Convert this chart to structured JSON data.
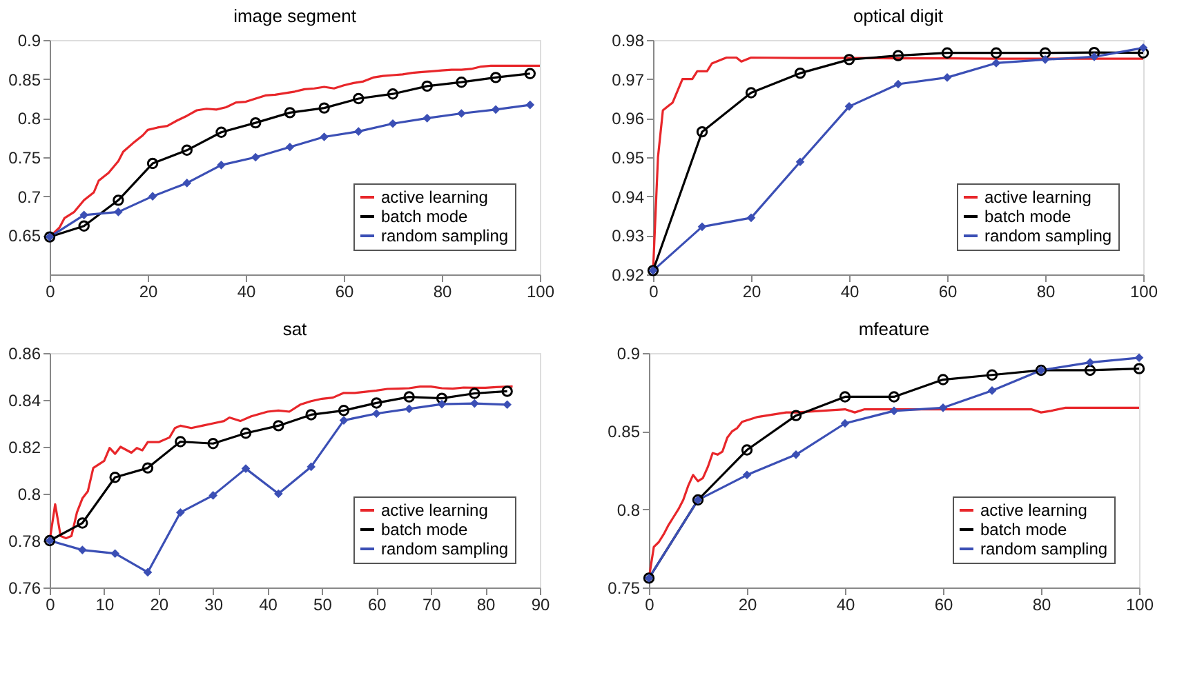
{
  "chart_data": [
    {
      "type": "line",
      "title": "image segment",
      "xlim": [
        0,
        100
      ],
      "xticks": [
        0,
        20,
        40,
        60,
        80,
        100
      ],
      "ylim": [
        0.6,
        0.9
      ],
      "yticks": [
        0.65,
        0.7,
        0.75,
        0.8,
        0.85,
        0.9
      ],
      "grid": false,
      "legend": "bottom right",
      "series": [
        {
          "name": "active learning",
          "color": "#e8262a",
          "marker": "none",
          "x": [
            0,
            2,
            3,
            5,
            7,
            9,
            10,
            12,
            14,
            15,
            17,
            19,
            20,
            22,
            24,
            26,
            28,
            30,
            32,
            34,
            36,
            38,
            40,
            42,
            44,
            46,
            48,
            50,
            52,
            54,
            56,
            58,
            60,
            62,
            64,
            66,
            68,
            70,
            72,
            74,
            76,
            78,
            80,
            82,
            84,
            86,
            88,
            90,
            95,
            100
          ],
          "values": [
            0.648,
            0.66,
            0.672,
            0.68,
            0.695,
            0.705,
            0.72,
            0.73,
            0.745,
            0.757,
            0.768,
            0.778,
            0.785,
            0.788,
            0.79,
            0.797,
            0.803,
            0.81,
            0.812,
            0.811,
            0.814,
            0.82,
            0.821,
            0.825,
            0.829,
            0.83,
            0.832,
            0.834,
            0.837,
            0.838,
            0.84,
            0.838,
            0.842,
            0.845,
            0.847,
            0.852,
            0.854,
            0.855,
            0.856,
            0.858,
            0.859,
            0.86,
            0.861,
            0.862,
            0.862,
            0.863,
            0.866,
            0.867,
            0.867,
            0.867
          ]
        },
        {
          "name": "batch mode",
          "color": "#000000",
          "marker": "circle",
          "x": [
            0,
            7,
            14,
            21,
            28,
            35,
            42,
            49,
            56,
            63,
            70,
            77,
            84,
            91,
            98
          ],
          "values": [
            0.648,
            0.662,
            0.695,
            0.742,
            0.759,
            0.782,
            0.794,
            0.807,
            0.813,
            0.825,
            0.831,
            0.841,
            0.846,
            0.852,
            0.857
          ]
        },
        {
          "name": "random sampling",
          "color": "#3b4fb5",
          "marker": "diamond",
          "x": [
            0,
            7,
            14,
            21,
            28,
            35,
            42,
            49,
            56,
            63,
            70,
            77,
            84,
            91,
            98
          ],
          "values": [
            0.648,
            0.676,
            0.68,
            0.7,
            0.717,
            0.74,
            0.75,
            0.763,
            0.776,
            0.783,
            0.793,
            0.8,
            0.806,
            0.811,
            0.817
          ]
        }
      ]
    },
    {
      "type": "line",
      "title": "optical digit",
      "xlim": [
        0,
        100
      ],
      "xticks": [
        0,
        20,
        40,
        60,
        80,
        100
      ],
      "ylim": [
        0.92,
        0.98
      ],
      "yticks": [
        0.92,
        0.93,
        0.94,
        0.95,
        0.96,
        0.97,
        0.98
      ],
      "grid": false,
      "legend": "bottom right",
      "series": [
        {
          "name": "active learning",
          "color": "#e8262a",
          "marker": "none",
          "x": [
            0,
            1,
            2,
            3,
            4,
            5,
            6,
            8,
            9,
            10,
            11,
            12,
            14,
            15,
            17,
            18,
            20,
            30,
            40,
            50,
            60,
            70,
            80,
            90,
            100
          ],
          "values": [
            0.921,
            0.95,
            0.962,
            0.963,
            0.964,
            0.967,
            0.97,
            0.97,
            0.972,
            0.972,
            0.972,
            0.974,
            0.975,
            0.9755,
            0.9755,
            0.9745,
            0.9755,
            0.9754,
            0.9754,
            0.9753,
            0.9753,
            0.9752,
            0.9752,
            0.9752,
            0.9752
          ]
        },
        {
          "name": "batch mode",
          "color": "#000000",
          "marker": "circle",
          "x": [
            0,
            10,
            20,
            30,
            40,
            50,
            60,
            70,
            80,
            90,
            100
          ],
          "values": [
            0.921,
            0.9565,
            0.9665,
            0.9715,
            0.975,
            0.976,
            0.9767,
            0.9767,
            0.9767,
            0.9768,
            0.9767
          ]
        },
        {
          "name": "random sampling",
          "color": "#3b4fb5",
          "marker": "diamond",
          "x": [
            0,
            10,
            20,
            30,
            40,
            50,
            60,
            70,
            80,
            90,
            100
          ],
          "values": [
            0.921,
            0.9322,
            0.9345,
            0.9488,
            0.963,
            0.9687,
            0.9704,
            0.9741,
            0.975,
            0.9757,
            0.978
          ]
        }
      ]
    },
    {
      "type": "line",
      "title": "sat",
      "xlim": [
        0,
        90
      ],
      "xticks": [
        0,
        10,
        20,
        30,
        40,
        50,
        60,
        70,
        80,
        90
      ],
      "ylim": [
        0.76,
        0.86
      ],
      "yticks": [
        0.76,
        0.78,
        0.8,
        0.82,
        0.84,
        0.86
      ],
      "grid": false,
      "legend": "bottom right",
      "series": [
        {
          "name": "active learning",
          "color": "#e8262a",
          "marker": "none",
          "x": [
            0,
            1,
            2,
            3,
            4,
            5,
            6,
            7,
            8,
            10,
            11,
            12,
            13,
            15,
            16,
            17,
            18,
            20,
            22,
            23,
            24,
            26,
            28,
            30,
            32,
            33,
            35,
            37,
            40,
            42,
            44,
            46,
            48,
            50,
            52,
            54,
            56,
            58,
            60,
            62,
            64,
            66,
            68,
            70,
            72,
            74,
            76,
            78,
            80,
            82,
            85
          ],
          "values": [
            0.78,
            0.7955,
            0.782,
            0.781,
            0.782,
            0.792,
            0.798,
            0.801,
            0.811,
            0.814,
            0.8195,
            0.817,
            0.82,
            0.8175,
            0.8195,
            0.8185,
            0.822,
            0.822,
            0.824,
            0.828,
            0.829,
            0.828,
            0.829,
            0.83,
            0.831,
            0.8325,
            0.831,
            0.833,
            0.835,
            0.8355,
            0.835,
            0.838,
            0.8395,
            0.8405,
            0.841,
            0.843,
            0.843,
            0.8435,
            0.844,
            0.8447,
            0.8448,
            0.845,
            0.8457,
            0.8457,
            0.845,
            0.8448,
            0.8453,
            0.8452,
            0.8452,
            0.8455,
            0.8458
          ]
        },
        {
          "name": "batch mode",
          "color": "#000000",
          "marker": "circle",
          "x": [
            0,
            6,
            12,
            18,
            24,
            30,
            36,
            42,
            48,
            54,
            60,
            66,
            72,
            78,
            84
          ],
          "values": [
            0.78,
            0.7875,
            0.807,
            0.811,
            0.8222,
            0.8214,
            0.8258,
            0.829,
            0.8337,
            0.8355,
            0.8387,
            0.8413,
            0.8407,
            0.8428,
            0.8437
          ]
        },
        {
          "name": "random sampling",
          "color": "#3b4fb5",
          "marker": "diamond",
          "x": [
            0,
            6,
            12,
            18,
            24,
            30,
            36,
            42,
            48,
            54,
            60,
            66,
            72,
            78,
            84
          ],
          "values": [
            0.78,
            0.776,
            0.7745,
            0.7665,
            0.792,
            0.7993,
            0.8107,
            0.8,
            0.8115,
            0.8313,
            0.8342,
            0.8362,
            0.8382,
            0.8385,
            0.838
          ]
        }
      ]
    },
    {
      "type": "line",
      "title": "mfeature",
      "xlim": [
        0,
        100
      ],
      "xticks": [
        0,
        20,
        40,
        60,
        80,
        100
      ],
      "ylim": [
        0.75,
        0.9
      ],
      "yticks": [
        0.75,
        0.8,
        0.85,
        0.9
      ],
      "grid": false,
      "legend": "bottom right",
      "series": [
        {
          "name": "active learning",
          "color": "#e8262a",
          "marker": "none",
          "x": [
            0,
            1,
            2,
            3,
            4,
            5,
            6,
            7,
            8,
            9,
            10,
            11,
            12,
            13,
            14,
            15,
            16,
            17,
            18,
            19,
            20,
            22,
            24,
            26,
            28,
            30,
            40,
            42,
            44,
            50,
            60,
            70,
            78,
            80,
            82,
            85,
            90,
            100
          ],
          "values": [
            0.756,
            0.776,
            0.779,
            0.784,
            0.79,
            0.795,
            0.8,
            0.806,
            0.815,
            0.822,
            0.818,
            0.82,
            0.827,
            0.836,
            0.835,
            0.837,
            0.846,
            0.85,
            0.852,
            0.856,
            0.857,
            0.859,
            0.86,
            0.861,
            0.862,
            0.862,
            0.864,
            0.862,
            0.864,
            0.864,
            0.864,
            0.864,
            0.864,
            0.862,
            0.863,
            0.865,
            0.865,
            0.865
          ]
        },
        {
          "name": "batch mode",
          "color": "#000000",
          "marker": "circle",
          "x": [
            0,
            10,
            20,
            30,
            40,
            50,
            60,
            70,
            80,
            90,
            100
          ],
          "values": [
            0.756,
            0.806,
            0.838,
            0.86,
            0.872,
            0.872,
            0.883,
            0.886,
            0.889,
            0.889,
            0.89
          ]
        },
        {
          "name": "random sampling",
          "color": "#3b4fb5",
          "marker": "diamond",
          "x": [
            0,
            10,
            20,
            30,
            40,
            50,
            60,
            70,
            80,
            90,
            100
          ],
          "values": [
            0.756,
            0.806,
            0.822,
            0.835,
            0.855,
            0.863,
            0.865,
            0.876,
            0.889,
            0.894,
            0.897
          ]
        }
      ]
    }
  ]
}
